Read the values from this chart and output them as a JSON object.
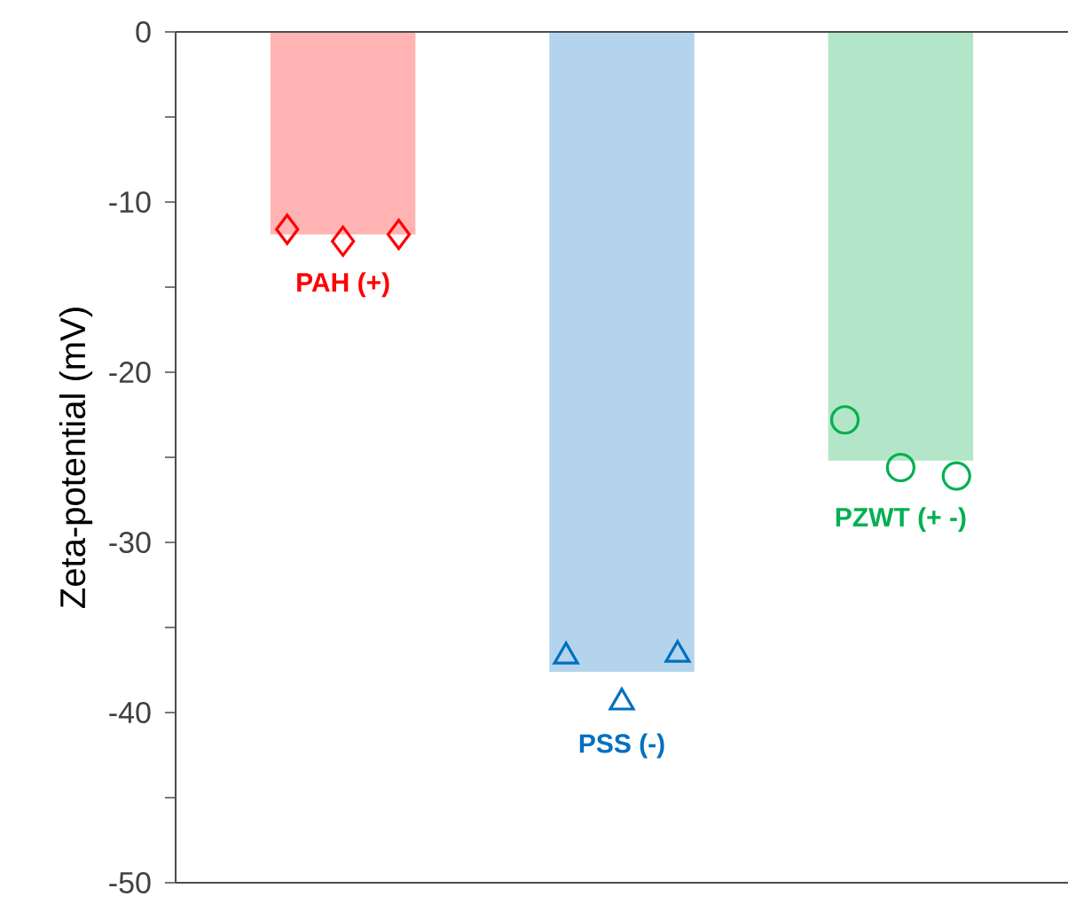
{
  "chart_data": {
    "type": "bar",
    "ylabel": "Zeta-potential (mV)",
    "categories": [
      null,
      null,
      null
    ],
    "ylim": [
      -50,
      0
    ],
    "yticks": [
      -50,
      {
        "value": -45,
        "label": null
      },
      -40,
      {
        "value": -35,
        "label": null
      },
      -30,
      {
        "value": -25,
        "label": null
      },
      -20,
      {
        "value": -15,
        "label": null
      },
      -10,
      {
        "value": -5,
        "label": null
      },
      0
    ],
    "tick_labels": "y",
    "series": [
      {
        "values": [
          -11.9,
          -37.6,
          -25.2
        ],
        "colors": [
          "#ffb3b3",
          "#b3d4ec",
          "#b3e6c8"
        ]
      },
      {
        "type": "scatter",
        "values": [
          -11.6,
          null,
          null
        ],
        "color": "#ff0000",
        "marker": "diamond"
      },
      {
        "type": "scatter",
        "values": [
          -12.3,
          null,
          null
        ],
        "color": "#ff0000",
        "marker": "diamond"
      },
      {
        "type": "scatter",
        "values": [
          -11.9,
          null,
          null
        ],
        "color": "#ff0000",
        "marker": "diamond"
      },
      {
        "type": "scatter",
        "values": [
          null,
          -36.7,
          null
        ],
        "color": "#0070c0",
        "marker": "triangle"
      },
      {
        "type": "scatter",
        "values": [
          null,
          -39.4,
          null
        ],
        "color": "#0070c0",
        "marker": "triangle"
      },
      {
        "type": "scatter",
        "values": [
          null,
          -36.6,
          null
        ],
        "color": "#0070c0",
        "marker": "triangle"
      },
      {
        "type": "scatter",
        "values": [
          null,
          null,
          -22.8
        ],
        "color": "#00b050",
        "marker": "circle"
      },
      {
        "type": "scatter",
        "values": [
          null,
          null,
          -25.6
        ],
        "color": "#00b050",
        "marker": "circle"
      },
      {
        "type": "scatter",
        "values": [
          null,
          null,
          -26.1
        ],
        "color": "#00b050",
        "marker": "circle"
      }
    ],
    "annotations": [
      "PAH (+)",
      "PSS (-)",
      "PZWT (+ -)"
    ]
  }
}
